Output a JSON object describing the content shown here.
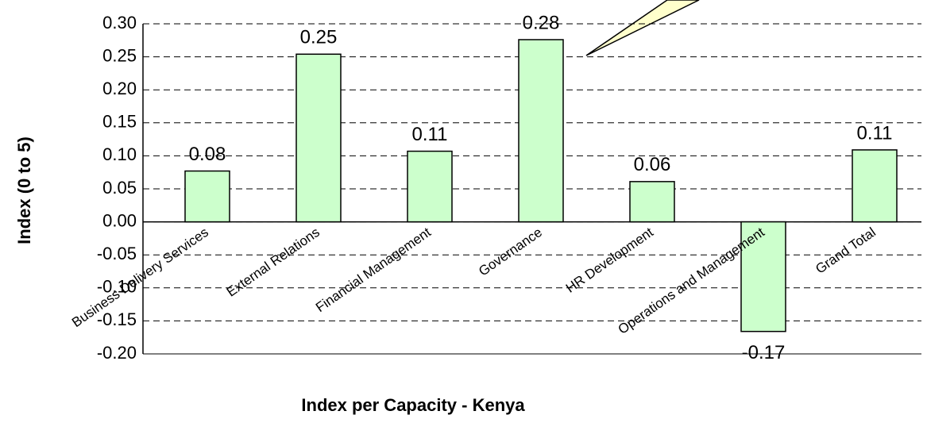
{
  "chart_data": {
    "type": "bar",
    "title": "Index per Capacity - Kenya",
    "y_label": "Index (0 to 5)",
    "categories": [
      "Business Delivery Services",
      "External Relations",
      "Financial Management",
      "Governance",
      "HR Development",
      "Operations and Management",
      "Grand Total"
    ],
    "values": [
      0.077,
      0.254,
      0.107,
      0.276,
      0.061,
      -0.166,
      0.109
    ],
    "value_labels": [
      "0.08",
      "0.25",
      "0.11",
      "0.28",
      "0.06",
      "-0.17",
      "0.11"
    ],
    "color": "#ccffcc",
    "ylim": [
      -0.2,
      0.3
    ],
    "yticks": [
      {
        "value": -0.2,
        "label": "-0.20"
      },
      {
        "value": -0.15,
        "label": "-0.15"
      },
      {
        "value": -0.1,
        "label": "-0.10"
      },
      {
        "value": -0.05,
        "label": "-0.05"
      },
      {
        "value": 0,
        "label": "0.00"
      },
      {
        "value": 0.05,
        "label": "0.05"
      },
      {
        "value": 0.1,
        "label": "0.10"
      },
      {
        "value": 0.15,
        "label": "0.15"
      },
      {
        "value": 0.2,
        "label": "0.20"
      },
      {
        "value": 0.25,
        "label": "0.25"
      },
      {
        "value": 0.3,
        "label": "0.30"
      }
    ],
    "grid": true
  }
}
